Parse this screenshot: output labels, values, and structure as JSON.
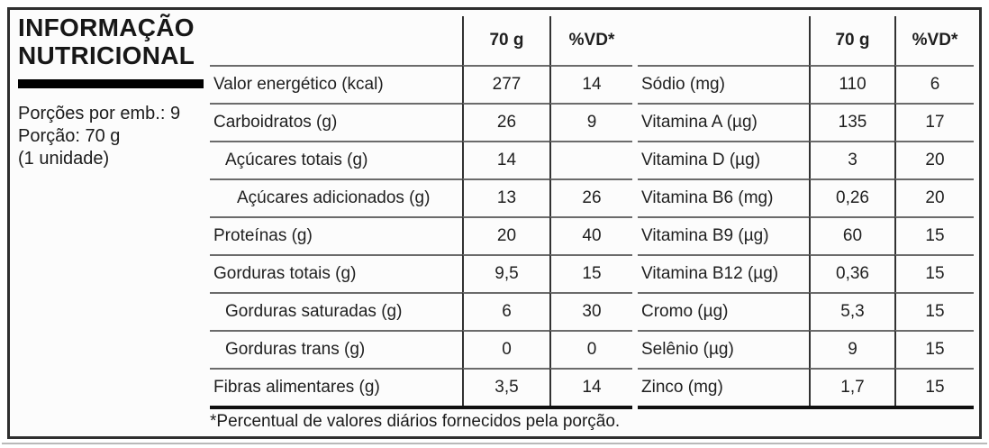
{
  "panel": {
    "title_line1": "INFORMAÇÃO",
    "title_line2": "NUTRICIONAL",
    "servings_per_pack": "Porções por emb.: 9",
    "portion": "Porção: 70 g",
    "portion_unit": "(1 unidade)"
  },
  "tables": {
    "left": {
      "headers": {
        "quantity": "70 g",
        "daily_value": "%VD*"
      },
      "rows": [
        {
          "name": "Valor energético (kcal)",
          "qty": "277",
          "vd": "14",
          "indent": 0
        },
        {
          "name": "Carboidratos (g)",
          "qty": "26",
          "vd": "9",
          "indent": 0
        },
        {
          "name": "Açúcares totais (g)",
          "qty": "14",
          "vd": "",
          "indent": 1
        },
        {
          "name": "Açúcares adicionados (g)",
          "qty": "13",
          "vd": "26",
          "indent": 2
        },
        {
          "name": "Proteínas (g)",
          "qty": "20",
          "vd": "40",
          "indent": 0
        },
        {
          "name": "Gorduras totais (g)",
          "qty": "9,5",
          "vd": "15",
          "indent": 0
        },
        {
          "name": "Gorduras saturadas (g)",
          "qty": "6",
          "vd": "30",
          "indent": 1
        },
        {
          "name": "Gorduras trans (g)",
          "qty": "0",
          "vd": "0",
          "indent": 1
        },
        {
          "name": "Fibras alimentares (g)",
          "qty": "3,5",
          "vd": "14",
          "indent": 0
        }
      ]
    },
    "right": {
      "headers": {
        "quantity": "70 g",
        "daily_value": "%VD*"
      },
      "rows": [
        {
          "name": "Sódio (mg)",
          "qty": "110",
          "vd": "6",
          "indent": 0
        },
        {
          "name": "Vitamina A (µg)",
          "qty": "135",
          "vd": "17",
          "indent": 0
        },
        {
          "name": "Vitamina D (µg)",
          "qty": "3",
          "vd": "20",
          "indent": 0
        },
        {
          "name": "Vitamina B6 (mg)",
          "qty": "0,26",
          "vd": "20",
          "indent": 0
        },
        {
          "name": "Vitamina B9 (µg)",
          "qty": "60",
          "vd": "15",
          "indent": 0
        },
        {
          "name": "Vitamina B12 (µg)",
          "qty": "0,36",
          "vd": "15",
          "indent": 0
        },
        {
          "name": "Cromo (µg)",
          "qty": "5,3",
          "vd": "15",
          "indent": 0
        },
        {
          "name": "Selênio (µg)",
          "qty": "9",
          "vd": "15",
          "indent": 0
        },
        {
          "name": "Zinco (mg)",
          "qty": "1,7",
          "vd": "15",
          "indent": 0
        }
      ]
    }
  },
  "footnote": "*Percentual de valores diários fornecidos pela porção.",
  "colors": {
    "background": "#fcfcfc",
    "border": "#2f2f2f",
    "row_line": "#6b6b6b",
    "column_divider": "#323232",
    "thick_line": "#101010",
    "text": "#1f1f1f",
    "bar": "#000000"
  }
}
